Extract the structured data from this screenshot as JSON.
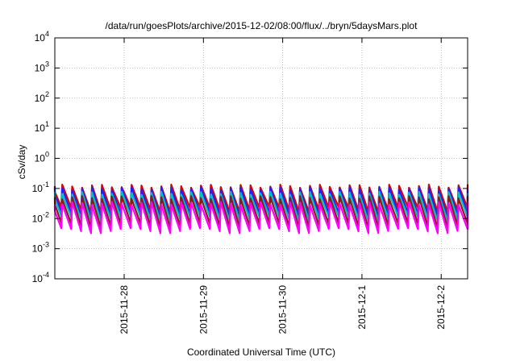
{
  "chart_data": {
    "type": "line",
    "title": "/data/run/goesPlots/archive/2015-12-02/08:00/flux/../bryn/5daysMars.plot",
    "xlabel": "Coordinated Universal Time (UTC)",
    "ylabel": "cSv/day",
    "yscale": "log",
    "ylim": [
      0.0001,
      10000
    ],
    "yticks": [
      {
        "base": "10",
        "exp": "-4"
      },
      {
        "base": "10",
        "exp": "-3"
      },
      {
        "base": "10",
        "exp": "-2"
      },
      {
        "base": "10",
        "exp": "-1"
      },
      {
        "base": "10",
        "exp": "0"
      },
      {
        "base": "10",
        "exp": "1"
      },
      {
        "base": "10",
        "exp": "2"
      },
      {
        "base": "10",
        "exp": "3"
      },
      {
        "base": "10",
        "exp": "4"
      }
    ],
    "xlim": [
      "2015-11-27 03:00",
      "2015-12-02 08:00"
    ],
    "xticks": [
      {
        "label": "2015-11-28",
        "value": "2015-11-28 00:00"
      },
      {
        "label": "2015-11-29",
        "value": "2015-11-29 00:00"
      },
      {
        "label": "2015-11-30",
        "value": "2015-11-30 00:00"
      },
      {
        "label": "2015-12-1",
        "value": "2015-12-01 00:00"
      },
      {
        "label": "2015-12-2",
        "value": "2015-12-02 00:00"
      }
    ],
    "grid": true,
    "sawtooth_period_hours": 3,
    "series": [
      {
        "color": "#e00000",
        "peak": 0.12,
        "trough": 0.02
      },
      {
        "color": "#2020ff",
        "peak": 0.1,
        "trough": 0.013
      },
      {
        "color": "#00c0c0",
        "peak": 0.07,
        "trough": 0.01
      },
      {
        "color": "#8b1a1a",
        "peak": 0.05,
        "trough": 0.006
      },
      {
        "color": "#ff00ff",
        "peak": 0.032,
        "trough": 0.004
      }
    ]
  }
}
